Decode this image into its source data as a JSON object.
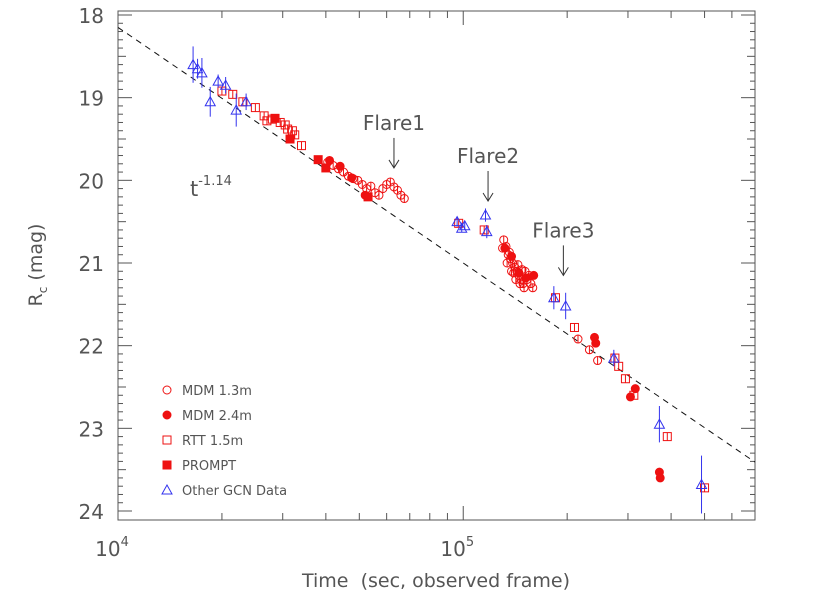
{
  "chart_data": {
    "type": "scatter",
    "xscale": "log",
    "yinverted": true,
    "xlim": [
      10000,
      700000
    ],
    "ylim": [
      18,
      24.1
    ],
    "xlabel": "Time  (sec, observed frame)",
    "ylabel_main": "R",
    "ylabel_sub": "c",
    "ylabel_rest": " (mag)",
    "xticks": [
      {
        "value": 10000,
        "base": "10",
        "exp": "4"
      },
      {
        "value": 100000,
        "base": "10",
        "exp": "5"
      }
    ],
    "yticks": [
      18,
      19,
      20,
      21,
      22,
      23,
      24
    ],
    "fit": {
      "label_base": "t",
      "label_exp": "-1.14",
      "slope": -1.14,
      "t0": 10000,
      "m0": 18.15
    },
    "annotations": [
      {
        "text": "Flare1",
        "x": 63000,
        "y": 19.85
      },
      {
        "text": "Flare2",
        "x": 118000,
        "y": 20.25
      },
      {
        "text": "Flare3",
        "x": 195000,
        "y": 21.15
      }
    ],
    "colors": {
      "red": "#ee1111",
      "blue": "#3333ee",
      "axis": "#555555"
    },
    "legend": {
      "position": "bottom-left",
      "items": [
        {
          "label": "MDM 1.3m",
          "marker": "circle-open",
          "color": "red"
        },
        {
          "label": "MDM 2.4m",
          "marker": "circle-filled",
          "color": "red"
        },
        {
          "label": "RTT 1.5m",
          "marker": "square-open",
          "color": "red"
        },
        {
          "label": "PROMPT",
          "marker": "square-filled",
          "color": "red"
        },
        {
          "label": "Other GCN Data",
          "marker": "triangle-open",
          "color": "blue"
        }
      ]
    },
    "series": [
      {
        "name": "MDM 1.3m",
        "marker": "circle-open",
        "color": "red",
        "points": [
          [
            40500,
            19.78
          ],
          [
            42000,
            19.82
          ],
          [
            43500,
            19.86
          ],
          [
            45000,
            19.9
          ],
          [
            46500,
            19.95
          ],
          [
            48000,
            19.98
          ],
          [
            49500,
            20.0
          ],
          [
            51000,
            20.05
          ],
          [
            52500,
            20.1
          ],
          [
            54000,
            20.07
          ],
          [
            55500,
            20.15
          ],
          [
            57000,
            20.18
          ],
          [
            58500,
            20.1
          ],
          [
            60000,
            20.05
          ],
          [
            61500,
            20.02
          ],
          [
            63000,
            20.08
          ],
          [
            64500,
            20.12
          ],
          [
            66000,
            20.18
          ],
          [
            67500,
            20.22
          ],
          [
            131000,
            20.72
          ],
          [
            133000,
            20.8
          ],
          [
            135000,
            20.9
          ],
          [
            137000,
            20.95
          ],
          [
            139000,
            21.0
          ],
          [
            141000,
            21.05
          ],
          [
            143000,
            21.1
          ],
          [
            145000,
            21.15
          ],
          [
            147000,
            21.2
          ],
          [
            149000,
            21.25
          ],
          [
            151000,
            21.1
          ],
          [
            153000,
            21.2
          ],
          [
            155000,
            21.15
          ],
          [
            157000,
            21.25
          ],
          [
            159000,
            21.3
          ],
          [
            134000,
            21.0
          ],
          [
            138000,
            21.1
          ],
          [
            142000,
            21.2
          ],
          [
            146000,
            21.25
          ],
          [
            150000,
            21.3
          ],
          [
            130000,
            20.82
          ],
          [
            136000,
            20.87
          ],
          [
            140000,
            21.12
          ],
          [
            144000,
            21.02
          ],
          [
            148000,
            21.08
          ],
          [
            245000,
            22.18
          ],
          [
            215000,
            21.92
          ],
          [
            232000,
            22.05
          ]
        ]
      },
      {
        "name": "MDM 2.4m",
        "marker": "circle-filled",
        "color": "red",
        "points": [
          [
            41000,
            19.76
          ],
          [
            44000,
            19.83
          ],
          [
            47500,
            19.97
          ],
          [
            52000,
            20.18
          ],
          [
            132000,
            20.82
          ],
          [
            138000,
            20.92
          ],
          [
            145000,
            21.12
          ],
          [
            152000,
            21.18
          ],
          [
            160000,
            21.15
          ],
          [
            240000,
            21.9
          ],
          [
            242000,
            21.97
          ],
          [
            305000,
            22.62
          ],
          [
            315000,
            22.52
          ],
          [
            370000,
            23.53
          ],
          [
            372000,
            23.6
          ]
        ]
      },
      {
        "name": "RTT 1.5m",
        "marker": "square-open",
        "color": "red",
        "points": [
          [
            20000,
            18.92
          ],
          [
            21500,
            18.96
          ],
          [
            23000,
            19.05
          ],
          [
            25000,
            19.12
          ],
          [
            26500,
            19.22
          ],
          [
            28000,
            19.26
          ],
          [
            29500,
            19.3
          ],
          [
            31000,
            19.38
          ],
          [
            32500,
            19.45
          ],
          [
            34000,
            19.58
          ],
          [
            30500,
            19.33
          ],
          [
            32000,
            19.4
          ],
          [
            27000,
            19.28
          ],
          [
            97000,
            20.52
          ],
          [
            115000,
            20.6
          ],
          [
            185000,
            21.42
          ],
          [
            210000,
            21.78
          ],
          [
            275000,
            22.15
          ],
          [
            282000,
            22.25
          ],
          [
            295000,
            22.4
          ],
          [
            312000,
            22.6
          ],
          [
            390000,
            23.1
          ],
          [
            500000,
            23.72
          ]
        ]
      },
      {
        "name": "PROMPT",
        "marker": "square-filled",
        "color": "red",
        "points": [
          [
            28500,
            19.25
          ],
          [
            31500,
            19.5
          ],
          [
            38000,
            19.75
          ],
          [
            40000,
            19.85
          ],
          [
            53000,
            20.2
          ]
        ]
      },
      {
        "name": "Other GCN Data",
        "marker": "triangle-open",
        "color": "blue",
        "points": [
          [
            16500,
            18.6
          ],
          [
            17000,
            18.65
          ],
          [
            17500,
            18.7
          ],
          [
            18500,
            19.05
          ],
          [
            19500,
            18.8
          ],
          [
            20500,
            18.85
          ],
          [
            22000,
            19.15
          ],
          [
            23500,
            19.05
          ],
          [
            96000,
            20.5
          ],
          [
            99000,
            20.58
          ],
          [
            101000,
            20.55
          ],
          [
            116000,
            20.42
          ],
          [
            117000,
            20.62
          ],
          [
            183000,
            21.42
          ],
          [
            198000,
            21.52
          ],
          [
            273000,
            22.15
          ],
          [
            370000,
            22.95
          ],
          [
            490000,
            23.68
          ]
        ],
        "errors": [
          [
            16500,
            0.22
          ],
          [
            17000,
            0.12
          ],
          [
            17500,
            0.18
          ],
          [
            18500,
            0.18
          ],
          [
            19500,
            0.08
          ],
          [
            20500,
            0.1
          ],
          [
            22000,
            0.2
          ],
          [
            23500,
            0.1
          ],
          [
            96000,
            0.06
          ],
          [
            99000,
            0.05
          ],
          [
            101000,
            0.05
          ],
          [
            116000,
            0.08
          ],
          [
            117000,
            0.08
          ],
          [
            183000,
            0.14
          ],
          [
            198000,
            0.16
          ],
          [
            273000,
            0.1
          ],
          [
            370000,
            0.22
          ],
          [
            490000,
            0.35
          ]
        ]
      }
    ]
  }
}
